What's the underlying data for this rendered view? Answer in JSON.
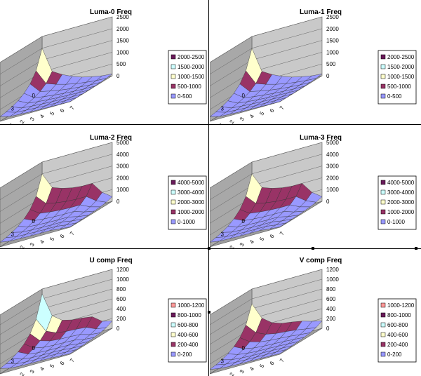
{
  "charts": [
    {
      "title": "Luma-0 Freq",
      "zmax": 2500,
      "zticks": [
        0,
        500,
        1000,
        1500,
        2000,
        2500
      ],
      "legend": [
        "2000-2500",
        "1500-2000",
        "1000-1500",
        "500-1000",
        "0-500"
      ],
      "colors": [
        "#6a1a5a",
        "#ccffff",
        "#ffffcc",
        "#993366",
        "#9999ff"
      ],
      "lowBands": 2
    },
    {
      "title": "Luma-1 Freq",
      "zmax": 2500,
      "zticks": [
        0,
        500,
        1000,
        1500,
        2000,
        2500
      ],
      "legend": [
        "2000-2500",
        "1500-2000",
        "1000-1500",
        "500-1000",
        "0-500"
      ],
      "colors": [
        "#6a1a5a",
        "#ccffff",
        "#ffffcc",
        "#993366",
        "#9999ff"
      ],
      "lowBands": 2
    },
    {
      "title": "Luma-2 Freq",
      "zmax": 5000,
      "zticks": [
        0,
        1000,
        2000,
        3000,
        4000,
        5000
      ],
      "legend": [
        "4000-5000",
        "3000-4000",
        "2000-3000",
        "1000-2000",
        "0-1000"
      ],
      "colors": [
        "#6a1a5a",
        "#ccffff",
        "#ffffcc",
        "#993366",
        "#9999ff"
      ],
      "lowBands": 2
    },
    {
      "title": "Luma-3 Freq",
      "zmax": 5000,
      "zticks": [
        0,
        1000,
        2000,
        3000,
        4000,
        5000
      ],
      "legend": [
        "4000-5000",
        "3000-4000",
        "2000-3000",
        "1000-2000",
        "0-1000"
      ],
      "colors": [
        "#6a1a5a",
        "#ccffff",
        "#ffffcc",
        "#993366",
        "#9999ff"
      ],
      "lowBands": 2
    },
    {
      "title": "U comp Freq",
      "zmax": 1200,
      "zticks": [
        0,
        200,
        400,
        600,
        800,
        1000,
        1200
      ],
      "legend": [
        "1000-1200",
        "800-1000",
        "600-800",
        "400-600",
        "200-400",
        "0-200"
      ],
      "colors": [
        "#ff9999",
        "#6a1a5a",
        "#ccffff",
        "#ffffcc",
        "#993366",
        "#9999ff"
      ],
      "lowBands": 3
    },
    {
      "title": "V comp Freq",
      "zmax": 1200,
      "zticks": [
        0,
        200,
        400,
        600,
        800,
        1000,
        1200
      ],
      "legend": [
        "1000-1200",
        "800-1000",
        "600-800",
        "400-600",
        "200-400",
        "0-200"
      ],
      "colors": [
        "#ff9999",
        "#6a1a5a",
        "#ccffff",
        "#ffffcc",
        "#993366",
        "#9999ff"
      ],
      "lowBands": 3
    }
  ],
  "axes": {
    "x_ticks": [
      "0",
      "1",
      "2",
      "3",
      "4",
      "5",
      "6",
      "7"
    ],
    "y_ticks": [
      "0",
      "3",
      "6"
    ]
  },
  "chart_data": [
    {
      "type": "surface",
      "title": "Luma-0 Freq",
      "x": [
        0,
        1,
        2,
        3,
        4,
        5,
        6,
        7
      ],
      "y_tick_labels": [
        0,
        3,
        6
      ],
      "zlim": [
        0,
        2500
      ],
      "legend": [
        "2000-2500",
        "1500-2000",
        "1000-1500",
        "500-1000",
        "0-500"
      ],
      "z_row0": [
        2000,
        900,
        650,
        450,
        300,
        200,
        120,
        80
      ]
    },
    {
      "type": "surface",
      "title": "Luma-1 Freq",
      "x": [
        0,
        1,
        2,
        3,
        4,
        5,
        6,
        7
      ],
      "y_tick_labels": [
        0,
        3,
        6
      ],
      "zlim": [
        0,
        2500
      ],
      "legend": [
        "2000-2500",
        "1500-2000",
        "1000-1500",
        "500-1000",
        "0-500"
      ],
      "z_row0": [
        2000,
        900,
        650,
        450,
        300,
        200,
        120,
        80
      ]
    },
    {
      "type": "surface",
      "title": "Luma-2 Freq",
      "x": [
        0,
        1,
        2,
        3,
        4,
        5,
        6,
        7
      ],
      "y_tick_labels": [
        0,
        3,
        6
      ],
      "zlim": [
        0,
        5000
      ],
      "legend": [
        "4000-5000",
        "3000-4000",
        "2000-3000",
        "1000-2000",
        "0-1000"
      ],
      "z_row0": [
        4000,
        2600,
        2300,
        2100,
        2000,
        2000,
        1000,
        400
      ]
    },
    {
      "type": "surface",
      "title": "Luma-3 Freq",
      "x": [
        0,
        1,
        2,
        3,
        4,
        5,
        6,
        7
      ],
      "y_tick_labels": [
        0,
        3,
        6
      ],
      "zlim": [
        0,
        5000
      ],
      "legend": [
        "4000-5000",
        "3000-4000",
        "2000-3000",
        "1000-2000",
        "0-1000"
      ],
      "z_row0": [
        4000,
        2600,
        2300,
        2100,
        2000,
        2000,
        1000,
        400
      ]
    },
    {
      "type": "surface",
      "title": "U comp Freq",
      "x": [
        0,
        1,
        2,
        3,
        4,
        5,
        6,
        7
      ],
      "y_tick_labels": [
        0,
        3,
        6
      ],
      "zlim": [
        0,
        1200
      ],
      "legend": [
        "1000-1200",
        "800-1000",
        "600-800",
        "400-600",
        "200-400",
        "0-200"
      ],
      "z_row0": [
        1100,
        600,
        450,
        400,
        380,
        350,
        200,
        150
      ]
    },
    {
      "type": "surface",
      "title": "V comp Freq",
      "x": [
        0,
        1,
        2,
        3,
        4,
        5,
        6,
        7
      ],
      "y_tick_labels": [
        0,
        3,
        6
      ],
      "zlim": [
        0,
        1200
      ],
      "legend": [
        "1000-1200",
        "800-1000",
        "600-800",
        "400-600",
        "200-400",
        "0-200"
      ],
      "z_row0": [
        900,
        550,
        400,
        330,
        300,
        260,
        200,
        150
      ]
    }
  ]
}
